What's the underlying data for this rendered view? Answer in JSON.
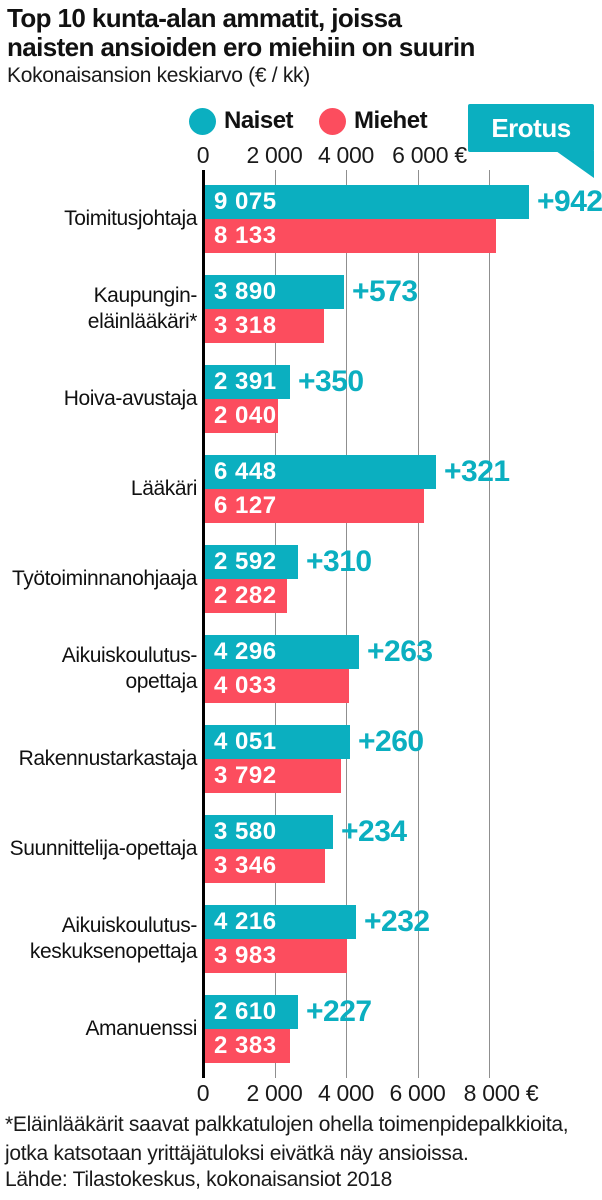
{
  "title": "Top 10 kunta-alan ammatit, joissa\nnaisten ansioiden ero miehiin on suurin",
  "subtitle": "Kokonaisansion keskiarvo (€ / kk)",
  "legend": {
    "naiset": "Naiset",
    "miehet": "Miehet"
  },
  "erotus_label": "Erotus",
  "colors": {
    "naiset": "#0bafc0",
    "miehet": "#fc4d5e",
    "grid": "#8f8f8f",
    "axis": "#000000"
  },
  "axis_top_labels": [
    "0",
    "2 000",
    "4 000",
    "6 000 €"
  ],
  "axis_bottom_labels": [
    "0",
    "2 000",
    "4 000",
    "6 000",
    "8 000 €"
  ],
  "chart_data": {
    "type": "bar",
    "orientation": "horizontal",
    "title": "Top 10 kunta-alan ammatit, joissa naisten ansioiden ero miehiin on suurin",
    "xlabel": "Kokonaisansion keskiarvo (€ / kk)",
    "xlim": [
      0,
      10000
    ],
    "xticks": [
      0,
      2000,
      4000,
      6000,
      8000
    ],
    "grid": true,
    "legend_position": "top",
    "categories": [
      "Toimitusjohtaja",
      "Kaupungin-\neläinlääkäri*",
      "Hoiva-avustaja",
      "Lääkäri",
      "Työtoiminnanohjaaja",
      "Aikuiskoulutus-\nopettaja",
      "Rakennustarkastaja",
      "Suunnittelija-opettaja",
      "Aikuiskoulutus-\nkeskuksenopettaja",
      "Amanuenssi"
    ],
    "series": [
      {
        "name": "Naiset",
        "values": [
          9075,
          3890,
          2391,
          6448,
          2592,
          4296,
          4051,
          3580,
          4216,
          2610
        ],
        "labels": [
          "9 075",
          "3 890",
          "2 391",
          "6 448",
          "2 592",
          "4 296",
          "4 051",
          "3 580",
          "4 216",
          "2 610"
        ]
      },
      {
        "name": "Miehet",
        "values": [
          8133,
          3318,
          2040,
          6127,
          2282,
          4033,
          3792,
          3346,
          3983,
          2383
        ],
        "labels": [
          "8 133",
          "3 318",
          "2 040",
          "6 127",
          "2 282",
          "4 033",
          "3 792",
          "3 346",
          "3 983",
          "2 383"
        ]
      }
    ],
    "diff_labels": [
      "+942",
      "+573",
      "+350",
      "+321",
      "+310",
      "+263",
      "+260",
      "+234",
      "+232",
      "+227"
    ]
  },
  "footnote": "*Eläinlääkärit saavat palkkatulojen ohella toimenpidepalkkioita,\njotka katsotaan yrittäjätuloksi eivätkä näy ansioissa.",
  "source": "Lähde: Tilastokeskus, kokonaisansiot 2018"
}
